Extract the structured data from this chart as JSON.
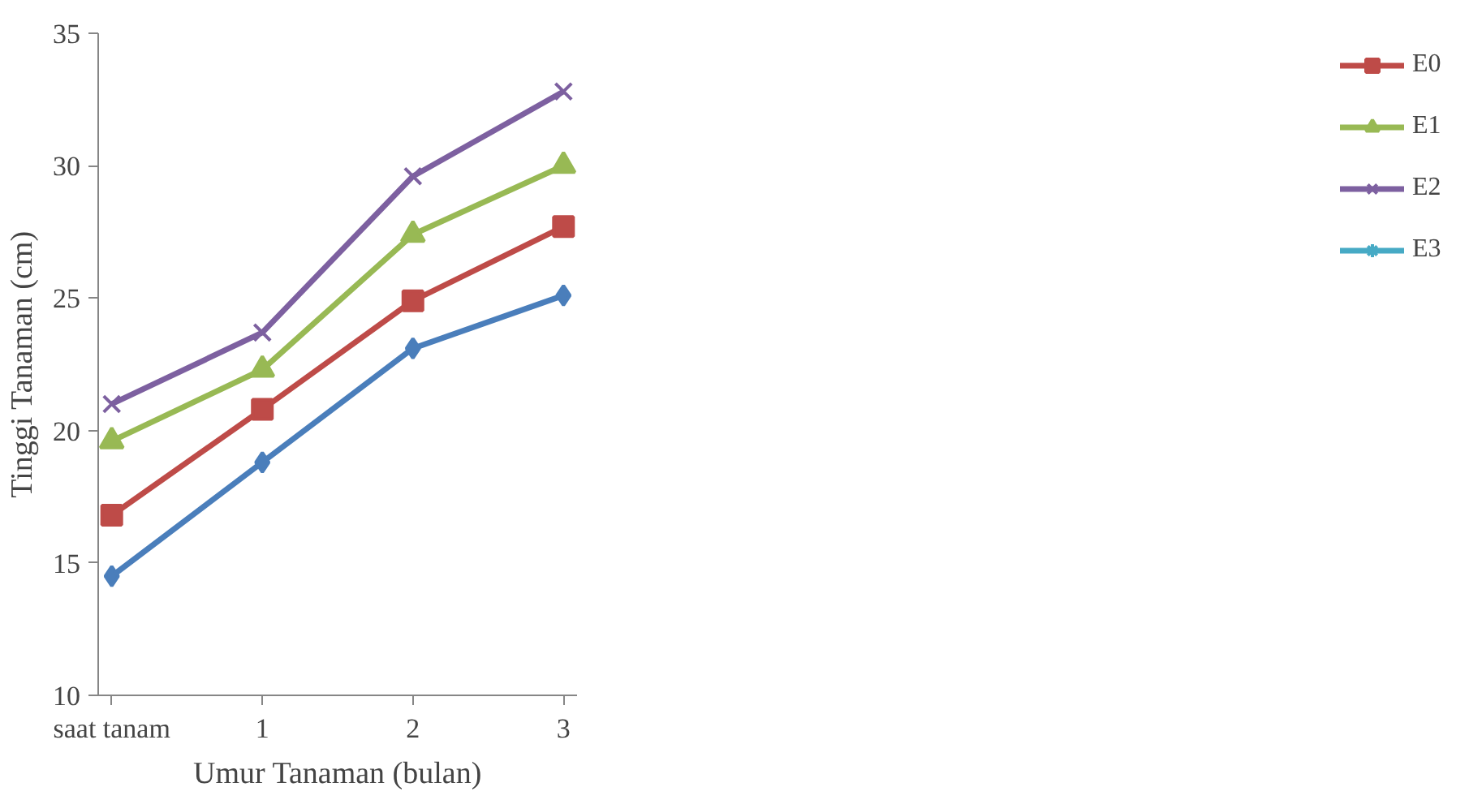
{
  "chart_data": {
    "type": "line",
    "xlabel": "Umur Tanaman (bulan)",
    "ylabel": "Tinggi Tanaman (cm)",
    "categories": [
      "saat tanam",
      "1",
      "2",
      "3"
    ],
    "ylim": [
      10,
      35
    ],
    "yticks": [
      10,
      15,
      20,
      25,
      30,
      35
    ],
    "grid": false,
    "legend": "right",
    "line_style": "solid",
    "series": [
      {
        "color": "#4a7ebb",
        "marker": "diamond",
        "values": [
          14.5,
          18.8,
          23.1,
          25.1
        ]
      },
      {
        "name": "E0",
        "color": "#be4b48",
        "marker": "square",
        "values": [
          16.8,
          20.8,
          24.9,
          27.7
        ]
      },
      {
        "name": "E1",
        "color": "#98b954",
        "marker": "triangle",
        "values": [
          19.6,
          22.3,
          27.4,
          30.0
        ]
      },
      {
        "name": "E2",
        "color": "#7d60a0",
        "marker": "cross",
        "values": [
          21.0,
          23.7,
          29.6,
          32.8
        ]
      },
      {
        "name": "E3",
        "color": "#46aac5",
        "marker": "star",
        "values": [
          null,
          null,
          null,
          null
        ]
      }
    ]
  }
}
